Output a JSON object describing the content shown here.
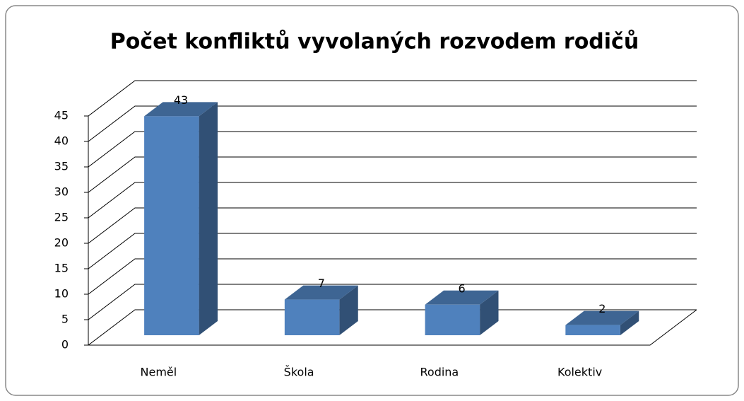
{
  "chart_data": {
    "type": "bar3d",
    "title": "Počet konfliktů vyvolaných rozvodem rodičů",
    "categories": [
      "Neměl",
      "Škola",
      "Rodina",
      "Kolektiv"
    ],
    "values": [
      43,
      7,
      6,
      2
    ],
    "color": "#4f81bd",
    "ylim": [
      0,
      45
    ],
    "yticks": [
      0,
      5,
      10,
      15,
      20,
      25,
      30,
      35,
      40,
      45
    ],
    "grid": true
  }
}
